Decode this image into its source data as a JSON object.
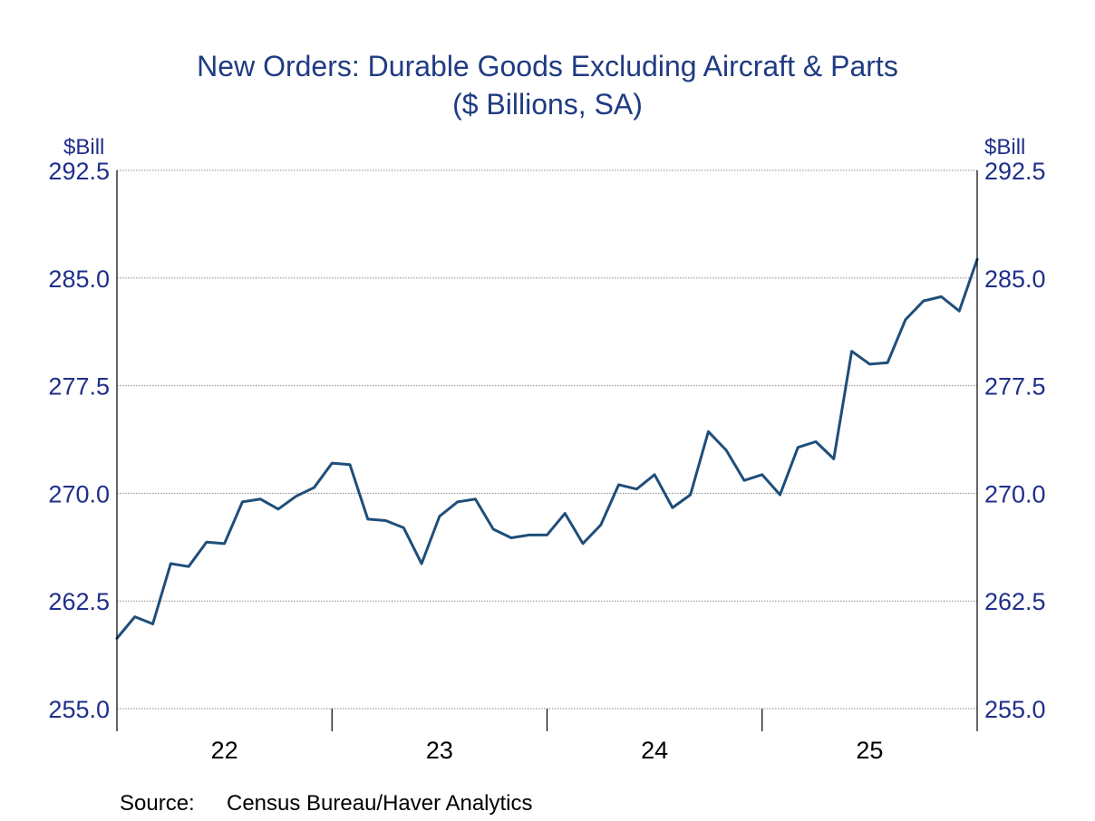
{
  "chart_data": {
    "type": "line",
    "title": "New Orders: Durable Goods Excluding Aircraft & Parts",
    "subtitle": "($ Billions, SA)",
    "ylabel_left": "$Bill",
    "ylabel_right": "$Bill",
    "xlabel": "",
    "ylim": [
      255.0,
      292.5
    ],
    "yticks": [
      "255.0",
      "262.5",
      "270.0",
      "277.5",
      "285.0",
      "292.5"
    ],
    "xlim": [
      2022.0,
      2026.0
    ],
    "xticks": [
      {
        "label": "22",
        "value": 2022.5
      },
      {
        "label": "23",
        "value": 2023.5
      },
      {
        "label": "24",
        "value": 2024.5
      },
      {
        "label": "25",
        "value": 2025.5
      }
    ],
    "xtick_boundaries": [
      2022.0,
      2023.0,
      2024.0,
      2025.0,
      2026.0
    ],
    "grid": true,
    "line_color": "#1f4e79",
    "series": [
      {
        "name": "New Orders: Durable Goods Excluding Aircraft & Parts",
        "start": "2022-01",
        "values": [
          259.9,
          261.4,
          260.9,
          265.1,
          264.9,
          266.6,
          266.5,
          269.4,
          269.6,
          268.9,
          269.8,
          270.4,
          272.1,
          272.0,
          268.2,
          268.1,
          267.6,
          265.1,
          268.4,
          269.4,
          269.6,
          267.5,
          266.9,
          267.1,
          267.1,
          268.6,
          266.5,
          267.8,
          270.6,
          270.3,
          271.3,
          269.0,
          269.9,
          274.3,
          273.0,
          270.9,
          271.3,
          269.9,
          273.2,
          273.6,
          272.4,
          279.9,
          279.0,
          279.1,
          282.1,
          283.4,
          283.7,
          282.7,
          286.3
        ]
      }
    ],
    "source_label": "Source:",
    "source_text": "Census Bureau/Haver Analytics"
  }
}
